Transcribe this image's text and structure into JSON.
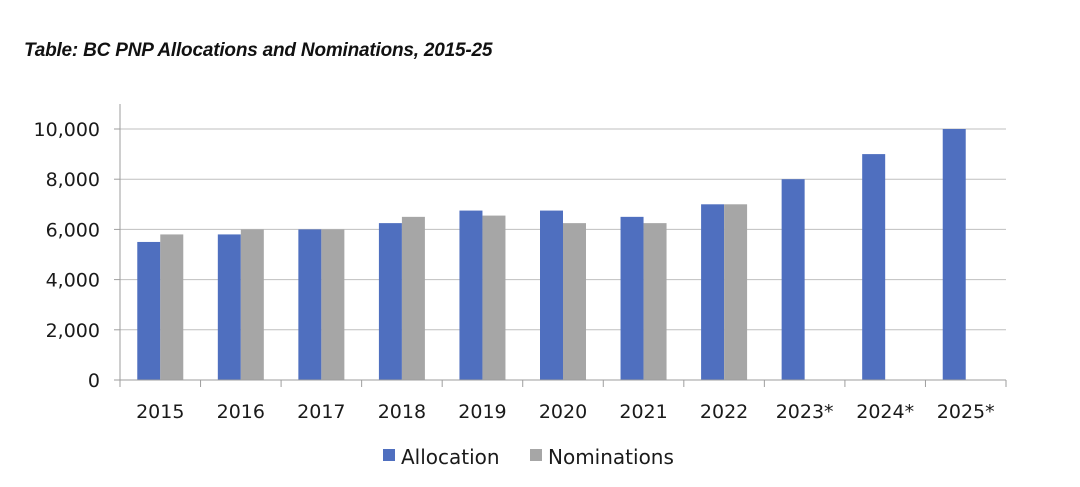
{
  "title": "Table: BC PNP Allocations and Nominations, 2015-25",
  "colors": {
    "allocation": "#4F6FBF",
    "nominations": "#A6A6A6",
    "grid": "#BFBFBF",
    "axis": "#9E9E9E"
  },
  "chart_data": {
    "type": "bar",
    "title": "Table: BC PNP Allocations and Nominations, 2015-25",
    "categories": [
      "2015",
      "2016",
      "2017",
      "2018",
      "2019",
      "2020",
      "2021",
      "2022",
      "2023*",
      "2024*",
      "2025*"
    ],
    "series": [
      {
        "name": "Allocation",
        "values": [
          5500,
          5800,
          6000,
          6250,
          6750,
          6750,
          6500,
          7000,
          8000,
          9000,
          10000
        ]
      },
      {
        "name": "Nominations",
        "values": [
          5800,
          6000,
          6000,
          6500,
          6550,
          6250,
          6250,
          7000,
          null,
          null,
          null
        ]
      }
    ],
    "ylim": [
      0,
      10000
    ],
    "yticks": [
      "0",
      "2,000",
      "4,000",
      "6,000",
      "8,000",
      "10,000"
    ],
    "ytick_values": [
      0,
      2000,
      4000,
      6000,
      8000,
      10000
    ],
    "grid": true,
    "legend_position": "bottom"
  }
}
